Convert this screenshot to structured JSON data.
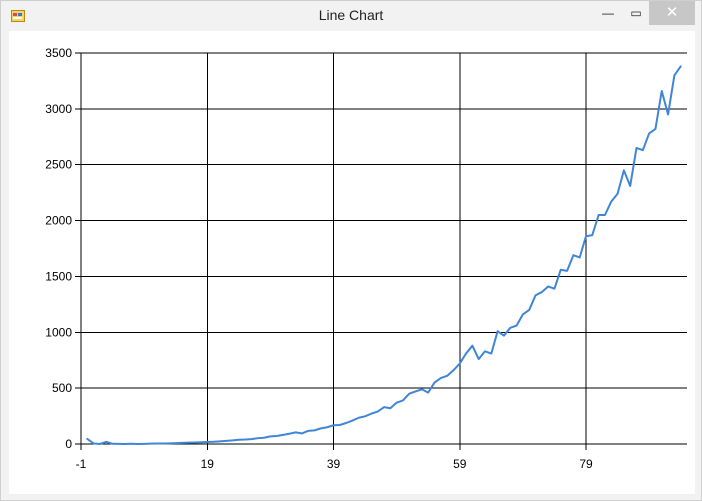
{
  "window": {
    "title": "Line Chart",
    "minimize_glyph": "—",
    "maximize_glyph": "▭",
    "close_glyph": "✕",
    "app_icon": "app-window-icon"
  },
  "chart_data": {
    "type": "line",
    "title": "",
    "xlabel": "",
    "ylabel": "",
    "xlim": [
      -1,
      95
    ],
    "ylim": [
      0,
      3500
    ],
    "xticks": [
      -1,
      19,
      39,
      59,
      79
    ],
    "yticks": [
      0,
      500,
      1000,
      1500,
      2000,
      2500,
      3000,
      3500
    ],
    "grid": true,
    "legend": "none",
    "line_color": "#3f86d9",
    "grid_color": "#000000",
    "series": [
      {
        "x": [
          0,
          1,
          2,
          3,
          4,
          5,
          6,
          7,
          8,
          9,
          10,
          11,
          12,
          13,
          14,
          15,
          16,
          17,
          18,
          19,
          20,
          21,
          22,
          23,
          24,
          25,
          26,
          27,
          28,
          29,
          30,
          31,
          32,
          33,
          34,
          35,
          36,
          37,
          38,
          39,
          40,
          41,
          42,
          43,
          44,
          45,
          46,
          47,
          48,
          49,
          50,
          51,
          52,
          53,
          54,
          55,
          56,
          57,
          58,
          59,
          60,
          61,
          62,
          63,
          64,
          65,
          66,
          67,
          68,
          69,
          70,
          71,
          72,
          73,
          74,
          75,
          76,
          77,
          78,
          79,
          80,
          81,
          82,
          83,
          84,
          85,
          86,
          87,
          88,
          89,
          90,
          91,
          92,
          93,
          94
        ],
        "values": [
          45,
          5,
          0,
          20,
          2,
          1,
          0,
          2,
          0,
          1,
          3,
          5,
          5,
          6,
          8,
          10,
          12,
          14,
          16,
          18,
          20,
          24,
          28,
          32,
          38,
          40,
          44,
          52,
          56,
          68,
          72,
          82,
          92,
          104,
          95,
          118,
          122,
          140,
          150,
          168,
          170,
          188,
          210,
          235,
          248,
          272,
          290,
          330,
          320,
          370,
          390,
          450,
          470,
          490,
          460,
          550,
          590,
          610,
          660,
          720,
          810,
          880,
          760,
          830,
          810,
          1010,
          970,
          1040,
          1060,
          1160,
          1200,
          1330,
          1360,
          1410,
          1390,
          1560,
          1550,
          1690,
          1670,
          1860,
          1870,
          2050,
          2050,
          2170,
          2240,
          2450,
          2310,
          2650,
          2630,
          2780,
          2820,
          3160,
          2950,
          3300,
          3380
        ]
      }
    ]
  }
}
